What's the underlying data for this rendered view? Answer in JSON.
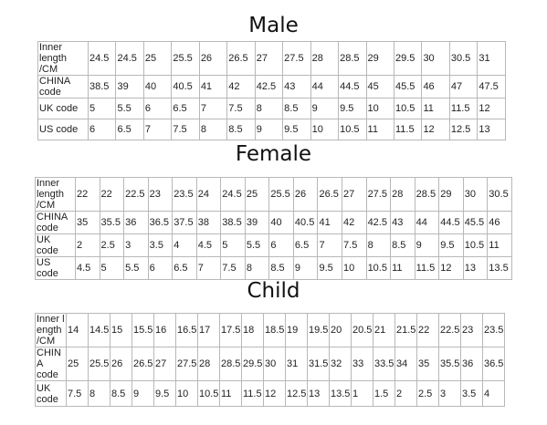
{
  "male": {
    "title": "Male",
    "rows": [
      {
        "label": "Inner length\n/CM",
        "values": [
          "24.5",
          "24.5",
          "25",
          "25.5",
          "26",
          "26.5",
          "27",
          "27.5",
          "28",
          "28.5",
          "29",
          "29.5",
          "30",
          "30.5",
          "31"
        ]
      },
      {
        "label": "CHINA\ncode",
        "values": [
          "38.5",
          "39",
          "40",
          "40.5",
          "41",
          "42",
          "42.5",
          "43",
          "44",
          "44.5",
          "45",
          "45.5",
          "46",
          "47",
          "47.5"
        ]
      },
      {
        "label": "UK code",
        "values": [
          "5",
          "5.5",
          "6",
          "6.5",
          "7",
          "7.5",
          "8",
          "8.5",
          "9",
          "9.5",
          "10",
          "10.5",
          "11",
          "11.5",
          "12"
        ]
      },
      {
        "label": "US code",
        "values": [
          "6",
          "6.5",
          "7",
          "7.5",
          "8",
          "8.5",
          "9",
          "9.5",
          "10",
          "10.5",
          "11",
          "11.5",
          "12",
          "12.5",
          "13"
        ]
      }
    ]
  },
  "female": {
    "title": "Female",
    "rows": [
      {
        "label": "Inner length\n/CM",
        "values": [
          "22",
          "22",
          "22.5",
          "23",
          "23.5",
          "24",
          "24.5",
          "25",
          "25.5",
          "26",
          "26.5",
          "27",
          "27.5",
          "28",
          "28.5",
          "29",
          "30",
          "30.5"
        ]
      },
      {
        "label": "CHINA\ncode",
        "values": [
          "35",
          "35.5",
          "36",
          "36.5",
          "37.5",
          "38",
          "38.5",
          "39",
          "40",
          "40.5",
          "41",
          "42",
          "42.5",
          "43",
          "44",
          "44.5",
          "45.5",
          "46"
        ]
      },
      {
        "label": "UK code",
        "values": [
          "2",
          "2.5",
          "3",
          "3.5",
          "4",
          "4.5",
          "5",
          "5.5",
          "6",
          "6.5",
          "7",
          "7.5",
          "8",
          "8.5",
          "9",
          "9.5",
          "10.5",
          "11"
        ]
      },
      {
        "label": "US code",
        "values": [
          "4.5",
          "5",
          "5.5",
          "6",
          "6.5",
          "7",
          "7.5",
          "8",
          "8.5",
          "9",
          "9.5",
          "10",
          "10.5",
          "11",
          "11.5",
          "12",
          "13",
          "13.5"
        ]
      }
    ]
  },
  "child": {
    "title": "Child",
    "rows": [
      {
        "label": "Inner length\n/CM",
        "values": [
          "14",
          "14.5",
          "15",
          "15.5",
          "16",
          "16.5",
          "17",
          "17.5",
          "18",
          "18.5",
          "19",
          "19.5",
          "20",
          "20.5",
          "21",
          "21.5",
          "22",
          "22.5",
          "23",
          "23.5"
        ]
      },
      {
        "label": "CHINA\ncode",
        "values": [
          "25",
          "25.5",
          "26",
          "26.5",
          "27",
          "27.5",
          "28",
          "28.5",
          "29.5",
          "30",
          "31",
          "31.5",
          "32",
          "33",
          "33.5",
          "34",
          "35",
          "35.5",
          "36",
          "36.5"
        ]
      },
      {
        "label": "UK\ncode",
        "values": [
          "7.5",
          "8",
          "8.5",
          "9",
          "9.5",
          "10",
          "10.5",
          "11",
          "11.5",
          "12",
          "12.5",
          "13",
          "13.5",
          "1",
          "1.5",
          "2",
          "2.5",
          "3",
          "3.5",
          "4"
        ]
      }
    ]
  }
}
